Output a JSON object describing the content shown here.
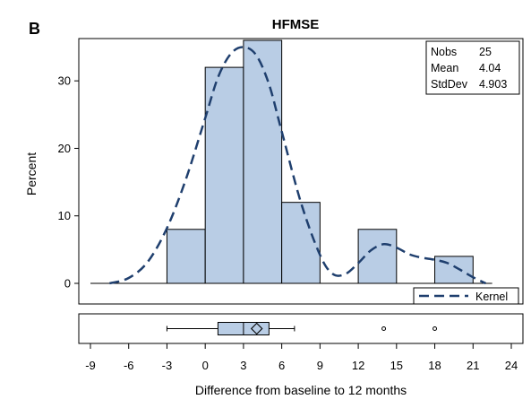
{
  "panel_label": "B",
  "chart_data": {
    "type": "bar",
    "title": "HFMSE",
    "xlabel": "Difference from baseline to 12 months",
    "ylabel": "Percent",
    "xlim": [
      -9,
      24
    ],
    "ylim": [
      0,
      36
    ],
    "x_ticks": [
      -9,
      -6,
      -3,
      0,
      3,
      6,
      9,
      12,
      15,
      18,
      21,
      24
    ],
    "y_ticks": [
      0,
      10,
      20,
      30
    ],
    "bin_width": 3,
    "bins": [
      {
        "start": -3,
        "end": 0,
        "percent": 8
      },
      {
        "start": 0,
        "end": 3,
        "percent": 32
      },
      {
        "start": 3,
        "end": 6,
        "percent": 36
      },
      {
        "start": 6,
        "end": 9,
        "percent": 12
      },
      {
        "start": 9,
        "end": 12,
        "percent": 0
      },
      {
        "start": 12,
        "end": 15,
        "percent": 8
      },
      {
        "start": 15,
        "end": 18,
        "percent": 0
      },
      {
        "start": 18,
        "end": 21,
        "percent": 4
      }
    ],
    "kernel": {
      "name": "Kernel",
      "color": "#1f3f6e",
      "x": [
        -7.5,
        -6,
        -4.5,
        -3,
        -1.5,
        0,
        1,
        2,
        3,
        4,
        5,
        6,
        7.5,
        9,
        10,
        11,
        12,
        13,
        14,
        15,
        16,
        17,
        18,
        19,
        20,
        21,
        22
      ],
      "y": [
        0,
        0.8,
        3.2,
        8.2,
        15.5,
        24.5,
        30.5,
        34,
        35,
        33.8,
        29.5,
        22.5,
        12,
        4.2,
        1.4,
        1.4,
        3,
        4.9,
        5.8,
        5.3,
        4.3,
        3.8,
        3.5,
        3,
        2,
        0.9,
        0
      ]
    },
    "bar_color": "#b9cde5",
    "legend": {
      "placement": "bottom-right",
      "label": "Kernel"
    },
    "stats": [
      {
        "label": "Nobs",
        "value": "25"
      },
      {
        "label": "Mean",
        "value": "4.04"
      },
      {
        "label": "StdDev",
        "value": "4.903"
      }
    ],
    "boxplot": {
      "whisker_low": -3,
      "q1": 1,
      "median": 3,
      "q3": 5,
      "whisker_high": 7,
      "mean": 4.04,
      "outliers": [
        14,
        18
      ]
    }
  }
}
